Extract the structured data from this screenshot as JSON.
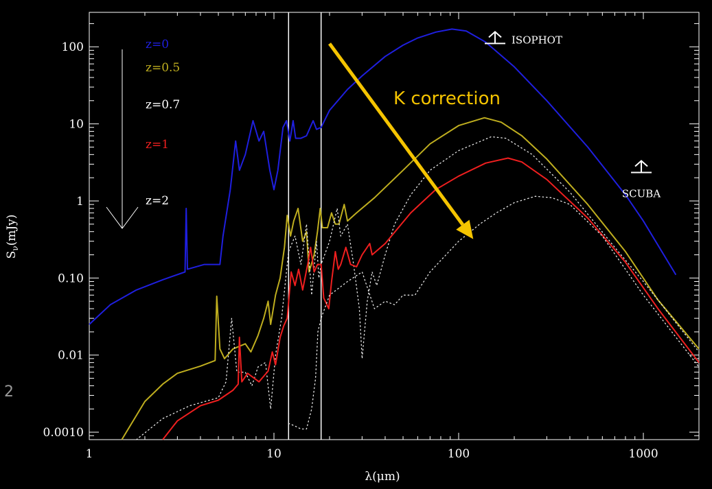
{
  "chart_data": {
    "type": "line",
    "xscale": "log",
    "yscale": "log",
    "xlim": [
      1,
      2000
    ],
    "ylim": [
      0.0008,
      280
    ],
    "xlabel": "λ(μm)",
    "ylabel_main": "S",
    "ylabel_sub": "ν",
    "ylabel_units": "(mJy)",
    "x_ticks": [
      {
        "value": 1,
        "label": "1"
      },
      {
        "value": 10,
        "label": "10"
      },
      {
        "value": 100,
        "label": "100"
      },
      {
        "value": 1000,
        "label": "1000"
      }
    ],
    "y_ticks": [
      {
        "value": 100,
        "label": "100"
      },
      {
        "value": 10,
        "label": "10"
      },
      {
        "value": 1,
        "label": "1"
      },
      {
        "value": 0.1,
        "label": "0.10"
      },
      {
        "value": 0.01,
        "label": "0.01"
      },
      {
        "value": 0.001,
        "label": "0.0010"
      }
    ],
    "vertical_lines": [
      12,
      18
    ],
    "series": [
      {
        "name": "z=0",
        "color": "#1f1fdf",
        "dash": "",
        "points": [
          [
            1,
            0.025
          ],
          [
            1.3,
            0.045
          ],
          [
            1.8,
            0.07
          ],
          [
            2.5,
            0.095
          ],
          [
            3.3,
            0.12
          ],
          [
            3.35,
            0.8
          ],
          [
            3.4,
            0.13
          ],
          [
            4.2,
            0.15
          ],
          [
            5.1,
            0.15
          ],
          [
            5.3,
            0.35
          ],
          [
            5.8,
            1.4
          ],
          [
            6.2,
            6.0
          ],
          [
            6.5,
            2.5
          ],
          [
            7,
            4
          ],
          [
            7.7,
            11
          ],
          [
            8.3,
            6
          ],
          [
            8.8,
            8
          ],
          [
            9.5,
            2.5
          ],
          [
            10,
            1.4
          ],
          [
            10.5,
            2.5
          ],
          [
            11.2,
            9
          ],
          [
            11.7,
            11
          ],
          [
            12.2,
            6
          ],
          [
            12.7,
            11
          ],
          [
            13.1,
            6.5
          ],
          [
            14,
            6.5
          ],
          [
            15,
            7
          ],
          [
            16.3,
            11
          ],
          [
            17,
            8.5
          ],
          [
            18,
            9
          ],
          [
            20,
            15
          ],
          [
            25,
            28
          ],
          [
            30,
            42
          ],
          [
            40,
            75
          ],
          [
            50,
            105
          ],
          [
            60,
            130
          ],
          [
            75,
            155
          ],
          [
            92,
            170
          ],
          [
            110,
            160
          ],
          [
            140,
            115
          ],
          [
            200,
            55
          ],
          [
            300,
            20
          ],
          [
            500,
            5
          ],
          [
            800,
            1.2
          ],
          [
            1000,
            0.55
          ],
          [
            1500,
            0.11
          ]
        ]
      },
      {
        "name": "z=0.5",
        "color": "#bfae1f",
        "dash": "",
        "points": [
          [
            1.5,
            0.0008
          ],
          [
            2,
            0.0025
          ],
          [
            2.5,
            0.0042
          ],
          [
            3,
            0.0058
          ],
          [
            4,
            0.0072
          ],
          [
            4.8,
            0.0085
          ],
          [
            4.9,
            0.058
          ],
          [
            5.1,
            0.012
          ],
          [
            5.4,
            0.009
          ],
          [
            6,
            0.012
          ],
          [
            7,
            0.014
          ],
          [
            7.5,
            0.011
          ],
          [
            8.2,
            0.018
          ],
          [
            8.8,
            0.03
          ],
          [
            9.3,
            0.05
          ],
          [
            9.6,
            0.025
          ],
          [
            10.2,
            0.06
          ],
          [
            10.8,
            0.1
          ],
          [
            11.4,
            0.25
          ],
          [
            11.8,
            0.65
          ],
          [
            12.3,
            0.35
          ],
          [
            12.8,
            0.55
          ],
          [
            13.5,
            0.8
          ],
          [
            14.3,
            0.3
          ],
          [
            15,
            0.4
          ],
          [
            15.5,
            0.12
          ],
          [
            16.5,
            0.2
          ],
          [
            17.2,
            0.4
          ],
          [
            17.8,
            0.8
          ],
          [
            18.3,
            0.45
          ],
          [
            19.5,
            0.45
          ],
          [
            20.5,
            0.7
          ],
          [
            21.5,
            0.5
          ],
          [
            22.5,
            0.5
          ],
          [
            24,
            0.9
          ],
          [
            25,
            0.55
          ],
          [
            28,
            0.7
          ],
          [
            35,
            1.1
          ],
          [
            50,
            2.5
          ],
          [
            70,
            5.5
          ],
          [
            100,
            9.5
          ],
          [
            138,
            12
          ],
          [
            170,
            10.5
          ],
          [
            220,
            7
          ],
          [
            300,
            3.5
          ],
          [
            500,
            0.9
          ],
          [
            800,
            0.22
          ],
          [
            1200,
            0.052
          ],
          [
            2000,
            0.012
          ]
        ]
      },
      {
        "name": "z=0.7",
        "color": "#e8e8e8",
        "dash": "1.5,4",
        "points": [
          [
            1.8,
            0.0008
          ],
          [
            2.5,
            0.0015
          ],
          [
            3.5,
            0.0022
          ],
          [
            5,
            0.0028
          ],
          [
            5.5,
            0.0045
          ],
          [
            5.9,
            0.03
          ],
          [
            6.3,
            0.006
          ],
          [
            7,
            0.006
          ],
          [
            7.6,
            0.004
          ],
          [
            8.2,
            0.007
          ],
          [
            9,
            0.008
          ],
          [
            9.6,
            0.002
          ],
          [
            10.2,
            0.01
          ],
          [
            11,
            0.03
          ],
          [
            12,
            0.22
          ],
          [
            13,
            0.35
          ],
          [
            14,
            0.15
          ],
          [
            15,
            0.5
          ],
          [
            16,
            0.06
          ],
          [
            17,
            0.3
          ],
          [
            17.5,
            0.1
          ],
          [
            18,
            0.15
          ],
          [
            20,
            0.3
          ],
          [
            22,
            0.8
          ],
          [
            23,
            0.35
          ],
          [
            25,
            0.5
          ],
          [
            27,
            0.15
          ],
          [
            29,
            0.04
          ],
          [
            30,
            0.009
          ],
          [
            32,
            0.05
          ],
          [
            34,
            0.12
          ],
          [
            36,
            0.08
          ],
          [
            40,
            0.2
          ],
          [
            45,
            0.5
          ],
          [
            55,
            1.2
          ],
          [
            70,
            2.5
          ],
          [
            100,
            4.5
          ],
          [
            150,
            6.8
          ],
          [
            180,
            6.5
          ],
          [
            250,
            4
          ],
          [
            400,
            1.3
          ],
          [
            700,
            0.25
          ],
          [
            1000,
            0.09
          ],
          [
            2000,
            0.011
          ]
        ]
      },
      {
        "name": "z=1",
        "color": "#ef1f1f",
        "dash": "",
        "points": [
          [
            2.5,
            0.0008
          ],
          [
            3,
            0.0014
          ],
          [
            4,
            0.0022
          ],
          [
            5,
            0.0026
          ],
          [
            6,
            0.0035
          ],
          [
            6.4,
            0.0042
          ],
          [
            6.5,
            0.017
          ],
          [
            6.7,
            0.0045
          ],
          [
            7.2,
            0.0058
          ],
          [
            8.3,
            0.0045
          ],
          [
            9.3,
            0.0062
          ],
          [
            9.8,
            0.011
          ],
          [
            10.2,
            0.0075
          ],
          [
            10.8,
            0.017
          ],
          [
            11.3,
            0.024
          ],
          [
            11.8,
            0.03
          ],
          [
            12.4,
            0.12
          ],
          [
            13,
            0.08
          ],
          [
            13.6,
            0.13
          ],
          [
            14.3,
            0.07
          ],
          [
            15.3,
            0.16
          ],
          [
            15.8,
            0.25
          ],
          [
            16.5,
            0.12
          ],
          [
            17.2,
            0.15
          ],
          [
            18,
            0.15
          ],
          [
            18.6,
            0.055
          ],
          [
            19.8,
            0.04
          ],
          [
            20.5,
            0.09
          ],
          [
            21.5,
            0.22
          ],
          [
            22.3,
            0.13
          ],
          [
            23,
            0.15
          ],
          [
            24.5,
            0.25
          ],
          [
            26,
            0.15
          ],
          [
            28,
            0.14
          ],
          [
            30,
            0.2
          ],
          [
            33,
            0.28
          ],
          [
            34,
            0.2
          ],
          [
            40,
            0.28
          ],
          [
            55,
            0.7
          ],
          [
            75,
            1.4
          ],
          [
            100,
            2.1
          ],
          [
            140,
            3.1
          ],
          [
            185,
            3.6
          ],
          [
            220,
            3.2
          ],
          [
            300,
            1.9
          ],
          [
            500,
            0.6
          ],
          [
            800,
            0.16
          ],
          [
            1200,
            0.04
          ],
          [
            2000,
            0.008
          ]
        ]
      },
      {
        "name": "z=2",
        "color": "#e8e8e8",
        "dash": "1.5,4",
        "points": [
          [
            12,
            0.0013
          ],
          [
            13,
            0.0012
          ],
          [
            14,
            0.0011
          ],
          [
            15,
            0.0011
          ],
          [
            16,
            0.002
          ],
          [
            16.8,
            0.005
          ],
          [
            17.3,
            0.02
          ],
          [
            18,
            0.03
          ],
          [
            20,
            0.06
          ],
          [
            25,
            0.09
          ],
          [
            30,
            0.12
          ],
          [
            35,
            0.04
          ],
          [
            40,
            0.05
          ],
          [
            45,
            0.045
          ],
          [
            50,
            0.06
          ],
          [
            58,
            0.06
          ],
          [
            70,
            0.12
          ],
          [
            100,
            0.3
          ],
          [
            130,
            0.5
          ],
          [
            160,
            0.7
          ],
          [
            200,
            0.95
          ],
          [
            260,
            1.15
          ],
          [
            320,
            1.1
          ],
          [
            400,
            0.9
          ],
          [
            600,
            0.35
          ],
          [
            1000,
            0.06
          ],
          [
            2000,
            0.007
          ]
        ]
      }
    ],
    "legend": [
      {
        "label": "z=0",
        "color": "#1f1fdf"
      },
      {
        "label": "z=0.5",
        "color": "#bfae1f"
      },
      {
        "label": "z=0.7",
        "color": "#ffffff"
      },
      {
        "label": "z=1",
        "color": "#ef1f1f"
      },
      {
        "label": "z=2",
        "color": "#ffffff"
      }
    ],
    "annotations": {
      "k_correction": {
        "label": "K correction",
        "color": "#f5c400",
        "from": [
          20,
          110
        ],
        "to": [
          120,
          0.32
        ]
      },
      "isophot": {
        "label": "ISOPHOT",
        "x": 100,
        "y": 125
      },
      "scuba": {
        "label": "SCUBA",
        "x": 850,
        "y": 2.2
      }
    }
  },
  "stray_text": "2"
}
